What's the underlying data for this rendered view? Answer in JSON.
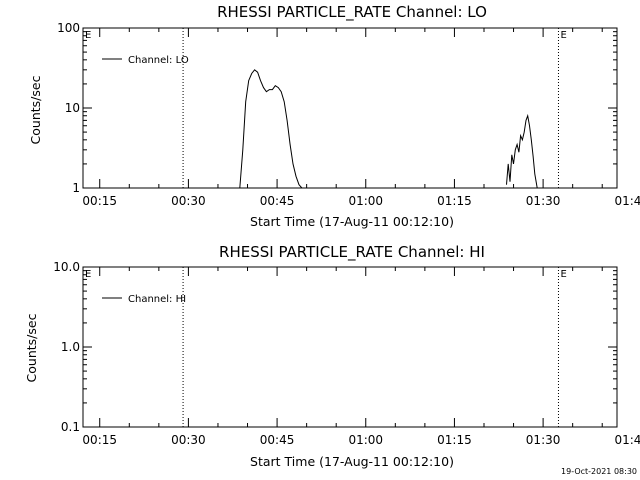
{
  "chart_data": [
    {
      "type": "line",
      "title": "RHESSI PARTICLE_RATE Channel: LO",
      "xlabel": "Start Time (17-Aug-11 00:12:10)",
      "ylabel": "Counts/sec",
      "y_scale": "log",
      "ylim": [
        1,
        100
      ],
      "xlim_minutes": [
        12.17,
        102.5
      ],
      "x_ticks": [
        {
          "label": "00:15",
          "minute": 15
        },
        {
          "label": "00:30",
          "minute": 30
        },
        {
          "label": "00:45",
          "minute": 45
        },
        {
          "label": "01:00",
          "minute": 60
        },
        {
          "label": "01:15",
          "minute": 75
        },
        {
          "label": "01:30",
          "minute": 90
        },
        {
          "label": "01:45",
          "minute": 105
        }
      ],
      "y_ticks": [
        {
          "label": "1",
          "value": 1
        },
        {
          "label": "10",
          "value": 10
        },
        {
          "label": "100",
          "value": 100
        }
      ],
      "legend": {
        "entry": "Channel: LO",
        "placement": "top-left"
      },
      "markers": [
        {
          "label": "E",
          "minute": 12.17,
          "style": "text"
        },
        {
          "label": "",
          "minute": 29.1,
          "style": "dotted"
        },
        {
          "label": "E",
          "minute": 92.6,
          "style": "dotted"
        },
        {
          "label": "",
          "minute": 108.3,
          "style": "dotted"
        }
      ],
      "series": [
        {
          "name": "Channel: LO",
          "x": [
            38.7,
            39.2,
            39.7,
            40.2,
            40.7,
            41.2,
            41.7,
            42.2,
            42.7,
            43.2,
            43.7,
            44.2,
            44.7,
            45.2,
            45.7,
            46.2,
            46.7,
            47.2,
            47.7,
            48.2,
            48.7,
            49.2
          ],
          "y": [
            1,
            3.0,
            12,
            22,
            27,
            30,
            28,
            22,
            18,
            16,
            17,
            17,
            19,
            18,
            16,
            12,
            7,
            3.5,
            2.0,
            1.4,
            1.1,
            1
          ],
          "note_segment": ""
        },
        {
          "name": "",
          "x": [
            83.8,
            84.1,
            84.4,
            84.7,
            85.0,
            85.3,
            85.6,
            85.9,
            86.2,
            86.5,
            86.8,
            87.1,
            87.4,
            87.7,
            88.0,
            88.3,
            88.6,
            89.0
          ],
          "y": [
            1.1,
            2.0,
            1.2,
            2.6,
            2.0,
            3.0,
            3.5,
            2.8,
            4.5,
            4.0,
            5.0,
            7.0,
            8.0,
            6.0,
            4.0,
            2.5,
            1.5,
            1.0
          ]
        }
      ]
    },
    {
      "type": "line",
      "title": "RHESSI PARTICLE_RATE Channel: HI",
      "xlabel": "Start Time (17-Aug-11 00:12:10)",
      "ylabel": "Counts/sec",
      "y_scale": "log",
      "ylim": [
        0.1,
        10
      ],
      "xlim_minutes": [
        12.17,
        102.5
      ],
      "x_ticks": [
        {
          "label": "00:15",
          "minute": 15
        },
        {
          "label": "00:30",
          "minute": 30
        },
        {
          "label": "00:45",
          "minute": 45
        },
        {
          "label": "01:00",
          "minute": 60
        },
        {
          "label": "01:15",
          "minute": 75
        },
        {
          "label": "01:30",
          "minute": 90
        },
        {
          "label": "01:45",
          "minute": 105
        }
      ],
      "y_ticks": [
        {
          "label": "0.1",
          "value": 0.1
        },
        {
          "label": "1.0",
          "value": 1
        },
        {
          "label": "10.0",
          "value": 10
        }
      ],
      "legend": {
        "entry": "Channel: HI",
        "placement": "top-left"
      },
      "markers": [
        {
          "label": "E",
          "minute": 12.17,
          "style": "text"
        },
        {
          "label": "",
          "minute": 29.1,
          "style": "dotted"
        },
        {
          "label": "E",
          "minute": 92.6,
          "style": "dotted"
        },
        {
          "label": "",
          "minute": 108.3,
          "style": "dotted"
        }
      ],
      "series": []
    }
  ],
  "footer": {
    "timestamp": "19-Oct-2021 08:30"
  }
}
